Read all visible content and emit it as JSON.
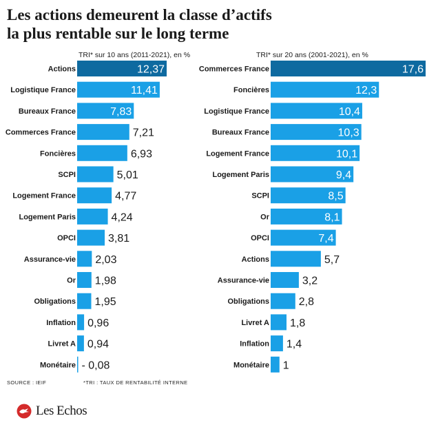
{
  "title_line1": "Les actions demeurent la classe d’actifs",
  "title_line2": "la plus rentable sur le long terme",
  "source": "SOURCE : IEIF",
  "footnote": "*TRI : TAUX DE RENTABILITÉ INTERNE",
  "logo_text": "Les Echos",
  "colors": {
    "bar": "#1aa0e6",
    "highlight": "#0e6aa0",
    "logo_red": "#d42b2b"
  },
  "chart_data": [
    {
      "type": "bar",
      "orientation": "horizontal",
      "title": "TRI* sur 10 ans (2011-2021), en %",
      "categories": [
        "Actions",
        "Logistique France",
        "Bureaux France",
        "Commerces France",
        "Foncières",
        "SCPI",
        "Logement France",
        "Logement Paris",
        "OPCI",
        "Assurance-vie",
        "Or",
        "Obligations",
        "Inflation",
        "Livret A",
        "Monétaire"
      ],
      "values": [
        12.37,
        11.41,
        7.83,
        7.21,
        6.93,
        5.01,
        4.77,
        4.24,
        3.81,
        2.03,
        1.98,
        1.95,
        0.96,
        0.94,
        -0.08
      ],
      "value_labels": [
        "12,37",
        "11,41",
        "7,83",
        "7,21",
        "6,93",
        "5,01",
        "4,77",
        "4,24",
        "3,81",
        "2,03",
        "1,98",
        "1,95",
        "0,96",
        "0,94",
        "- 0,08"
      ],
      "highlight": [
        "Actions"
      ],
      "xlim": [
        0,
        12.37
      ]
    },
    {
      "type": "bar",
      "orientation": "horizontal",
      "title": "TRI* sur 20 ans (2001-2021), en %",
      "categories": [
        "Commerces France",
        "Foncières",
        "Logistique France",
        "Bureaux France",
        "Logement France",
        "Logement Paris",
        "SCPI",
        "Or",
        "OPCI",
        "Actions",
        "Assurance-vie",
        "Obligations",
        "Livret A",
        "Inflation",
        "Monétaire"
      ],
      "values": [
        17.6,
        12.3,
        10.4,
        10.3,
        10.1,
        9.4,
        8.5,
        8.1,
        7.4,
        5.7,
        3.2,
        2.8,
        1.8,
        1.4,
        1.0
      ],
      "value_labels": [
        "17,6",
        "12,3",
        "10,4",
        "10,3",
        "10,1",
        "9,4",
        "8,5",
        "8,1",
        "7,4",
        "5,7",
        "3,2",
        "2,8",
        "1,8",
        "1,4",
        "1"
      ],
      "highlight": [
        "Commerces France"
      ],
      "xlim": [
        0,
        17.6
      ]
    }
  ]
}
